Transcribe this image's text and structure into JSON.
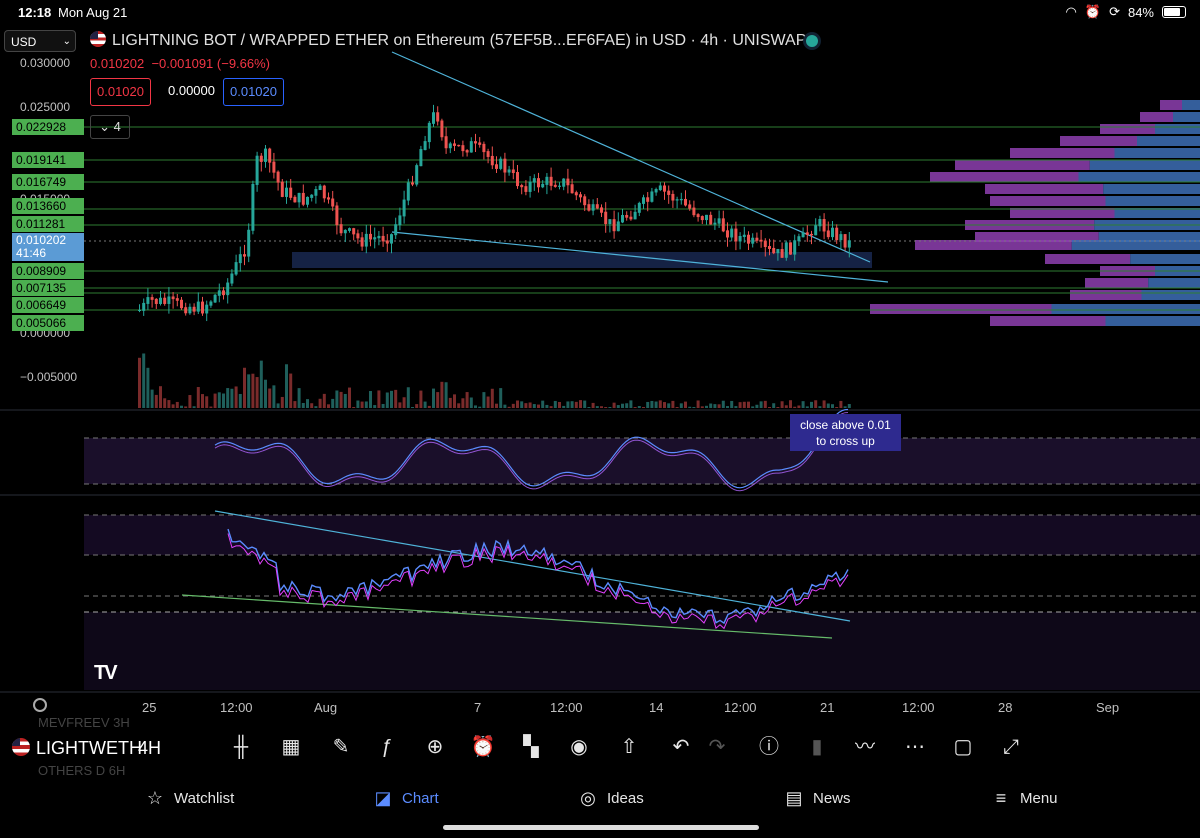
{
  "status_bar": {
    "time": "12:18",
    "date": "Mon Aug 21",
    "battery": "84%"
  },
  "currency_select": "USD",
  "header": {
    "title": "LIGHTNING BOT / WRAPPED ETHER on Ethereum (57EF5B...EF6FAE) in USD · 4h · UNISWAP",
    "last": "0.010202",
    "change": "−0.001091 (−9.66%)",
    "bid": "0.01020",
    "spread": "0.00000",
    "ask": "0.01020",
    "indicators_toggle": "4"
  },
  "price_axis": {
    "ticks": [
      "0.030000",
      "0.025000",
      "0.015000",
      "0.000000",
      "−0.005000"
    ],
    "levels": [
      "0.022928",
      "0.019141",
      "0.016749",
      "0.013660",
      "0.011281",
      "0.008909",
      "0.007135",
      "0.006649",
      "0.005066"
    ],
    "current_price": "0.010202",
    "countdown": "41:46"
  },
  "annotation": {
    "line1": "close above 0.01",
    "line2": "to cross up"
  },
  "time_axis": [
    "25",
    "12:00",
    "Aug",
    "7",
    "12:00",
    "14",
    "12:00",
    "21",
    "12:00",
    "28",
    "Sep"
  ],
  "toolbar": {
    "symbol": "LIGHTWETH",
    "interval": "4H",
    "ghost_above": "MEVFREEV 3H",
    "ghost_below": "OTHERS D 6H",
    "icons": [
      "candles-icon",
      "alert-calendar-icon",
      "draw-icon",
      "fx-icon",
      "plus-icon",
      "alarm-icon",
      "layout-icon",
      "ideas-icon",
      "share-icon",
      "undo-icon",
      "redo-icon",
      "info-icon",
      "bars-icon",
      "compare-icon",
      "more-icon",
      "square-icon",
      "fullscreen-icon"
    ]
  },
  "bottom_nav": [
    {
      "label": "Watchlist",
      "icon": "star-icon"
    },
    {
      "label": "Chart",
      "icon": "chart-icon",
      "active": true
    },
    {
      "label": "Ideas",
      "icon": "bulb-icon"
    },
    {
      "label": "News",
      "icon": "news-icon"
    },
    {
      "label": "Menu",
      "icon": "menu-icon"
    }
  ],
  "colors": {
    "up": "#26a69a",
    "down": "#ef5350",
    "accent": "#2962ff",
    "level": "#4caf50"
  }
}
